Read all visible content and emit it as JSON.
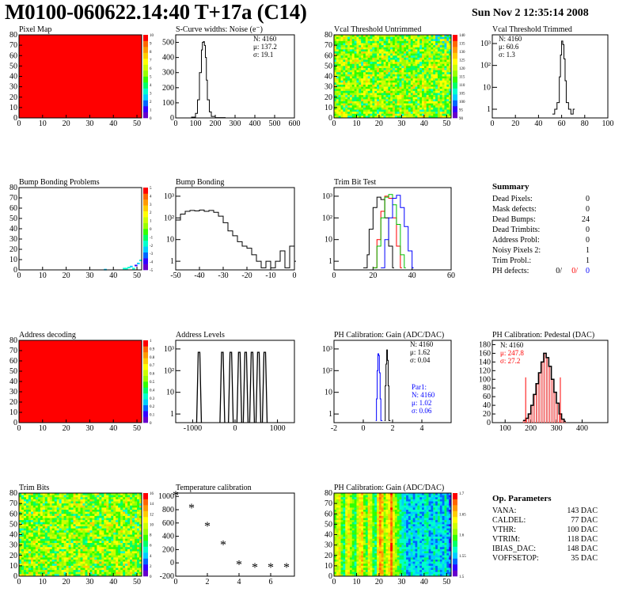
{
  "header": {
    "title": "M0100-060622.14:40 T+17a (C14)",
    "date": "Sun Nov  2 12:35:14 2008"
  },
  "colors": {
    "axis": "#000000",
    "red": "#ff0000",
    "green": "#00c000",
    "blue": "#0000ff",
    "palette": [
      "#6600cc",
      "#3300ff",
      "#0066ff",
      "#00ccff",
      "#00ffcc",
      "#00ff66",
      "#33ff00",
      "#99ff00",
      "#ccff00",
      "#ffff00",
      "#ffcc00",
      "#ff9900",
      "#ff6600",
      "#ff0000"
    ]
  },
  "summary": {
    "title": "Summary",
    "rows": [
      {
        "label": "Dead Pixels:",
        "value": "0"
      },
      {
        "label": "Mask defects:",
        "value": "0"
      },
      {
        "label": "Dead Bumps:",
        "value": "24"
      },
      {
        "label": "Dead Trimbits:",
        "value": "0"
      },
      {
        "label": "Address Probl:",
        "value": "0"
      },
      {
        "label": "Noisy Pixels 2:",
        "value": "1"
      },
      {
        "label": "Trim Probl.:",
        "value": "1"
      }
    ],
    "ph_label": "PH defects:",
    "ph_values": [
      "0/",
      "0/",
      "0"
    ]
  },
  "op_params": {
    "title": "Op. Parameters",
    "rows": [
      {
        "label": "VANA:",
        "value": "143 DAC"
      },
      {
        "label": "CALDEL:",
        "value": "77 DAC"
      },
      {
        "label": "VTHR:",
        "value": "100 DAC"
      },
      {
        "label": "VTRIM:",
        "value": "118 DAC"
      },
      {
        "label": "IBIAS_DAC:",
        "value": "148 DAC"
      },
      {
        "label": "VOFFSETOP:",
        "value": "35 DAC"
      }
    ]
  },
  "chart_data": [
    {
      "id": "pixel-map",
      "type": "heatmap",
      "title": "Pixel Map",
      "xlim": [
        0,
        52
      ],
      "ylim": [
        0,
        80
      ],
      "xticks": [
        "0",
        "10",
        "20",
        "30",
        "40",
        "50"
      ],
      "yticks": [
        "0",
        "10",
        "20",
        "30",
        "40",
        "50",
        "60",
        "70",
        "80"
      ],
      "fill": "uniform",
      "uniform_value": 10,
      "zlim": [
        0,
        10
      ],
      "zticks": [
        "10",
        "9",
        "8",
        "7",
        "6",
        "5",
        "4",
        "3",
        "2",
        "1",
        "0"
      ]
    },
    {
      "id": "scurve",
      "type": "line",
      "title": "S-Curve widths: Noise (e⁻)",
      "xlim": [
        0,
        600
      ],
      "xticks": [
        "0",
        "100",
        "200",
        "300",
        "400",
        "500",
        "600"
      ],
      "ylim": [
        0,
        550
      ],
      "yticks": [
        "0",
        "100",
        "200",
        "300",
        "400",
        "500"
      ],
      "stats": [
        "N: 4160",
        "μ: 137.2",
        "σ: 19.1"
      ],
      "x": [
        60,
        80,
        100,
        110,
        120,
        130,
        135,
        140,
        145,
        150,
        155,
        160,
        170,
        180,
        200,
        250
      ],
      "values": [
        0,
        5,
        30,
        120,
        300,
        450,
        500,
        505,
        480,
        400,
        250,
        120,
        40,
        10,
        2,
        0
      ]
    },
    {
      "id": "vcal-untrimmed",
      "type": "heatmap",
      "title": "Vcal Threshold Untrimmed",
      "xlim": [
        0,
        52
      ],
      "ylim": [
        0,
        80
      ],
      "xticks": [
        "0",
        "10",
        "20",
        "30",
        "40",
        "50"
      ],
      "yticks": [
        "0",
        "10",
        "20",
        "30",
        "40",
        "50",
        "60",
        "70",
        "80"
      ],
      "fill": "noise-mid",
      "zticks": [
        "140",
        "135",
        "130",
        "125",
        "120",
        "115",
        "110",
        "105",
        "100",
        "95",
        "90"
      ]
    },
    {
      "id": "vcal-trimmed",
      "type": "line",
      "title": "Vcal Threshold Trimmed",
      "log": true,
      "xlim": [
        0,
        100
      ],
      "xticks": [
        "0",
        "20",
        "40",
        "60",
        "80",
        "100"
      ],
      "yticks": [
        "1",
        "10",
        "10²",
        "10³"
      ],
      "stats": [
        "N: 4160",
        "μ: 60.6",
        "σ:  1.3"
      ],
      "x": [
        52,
        54,
        56,
        58,
        59,
        60,
        61,
        62,
        63,
        64,
        66,
        68,
        70
      ],
      "values": [
        0.6,
        1,
        2,
        30,
        300,
        1300,
        900,
        200,
        20,
        2,
        1,
        0.6,
        1
      ]
    },
    {
      "id": "bump-problems",
      "type": "heatmap",
      "title": "Bump Bonding Problems",
      "xlim": [
        0,
        52
      ],
      "ylim": [
        0,
        80
      ],
      "xticks": [
        "0",
        "10",
        "20",
        "30",
        "40",
        "50"
      ],
      "yticks": [
        "0",
        "10",
        "20",
        "30",
        "40",
        "50",
        "60",
        "70",
        "80"
      ],
      "fill": "sparse",
      "zticks": [
        "5",
        "4",
        "3",
        "2",
        "1",
        "0",
        "-1",
        "-2",
        "-3",
        "-4",
        "-5"
      ]
    },
    {
      "id": "bump-bonding",
      "type": "line",
      "title": "Bump Bonding",
      "log": true,
      "xlim": [
        -50,
        0
      ],
      "xticks": [
        "-50",
        "-40",
        "-30",
        "-20",
        "-10",
        "0"
      ],
      "yticks": [
        "1",
        "10",
        "10²",
        "10³"
      ],
      "x": [
        -50,
        -48,
        -46,
        -44,
        -42,
        -40,
        -38,
        -36,
        -34,
        -32,
        -30,
        -28,
        -26,
        -24,
        -22,
        -20,
        -18,
        -16,
        -14,
        -12,
        -10,
        -8,
        -6,
        -4,
        -2,
        0
      ],
      "values": [
        80,
        150,
        200,
        220,
        210,
        230,
        200,
        220,
        180,
        120,
        60,
        25,
        15,
        8,
        5,
        4,
        2,
        1,
        0.5,
        1,
        0.5,
        1,
        3,
        0.5,
        5,
        1
      ]
    },
    {
      "id": "trim-bit-test",
      "type": "line",
      "title": "Trim Bit Test",
      "log": true,
      "xlim": [
        0,
        60
      ],
      "xticks": [
        "0",
        "20",
        "40",
        "60"
      ],
      "yticks": [
        "1",
        "10",
        "10²",
        "10³"
      ],
      "series": [
        {
          "color": "#000000",
          "x": [
            15,
            17,
            18,
            20,
            22,
            24,
            26,
            28,
            30
          ],
          "values": [
            0.5,
            2,
            30,
            300,
            900,
            700,
            100,
            5,
            0.5
          ]
        },
        {
          "color": "#ff0000",
          "x": [
            20,
            22,
            24,
            26,
            28,
            30,
            32,
            34
          ],
          "values": [
            0.5,
            10,
            200,
            1000,
            800,
            100,
            5,
            0.5
          ]
        },
        {
          "color": "#00c000",
          "x": [
            20,
            22,
            24,
            26,
            28,
            30,
            32,
            34,
            36
          ],
          "values": [
            0.5,
            5,
            100,
            900,
            1200,
            400,
            50,
            2,
            0.5
          ]
        },
        {
          "color": "#0000ff",
          "x": [
            24,
            26,
            28,
            30,
            32,
            34,
            36,
            38,
            40
          ],
          "values": [
            0.5,
            10,
            100,
            800,
            1100,
            300,
            40,
            3,
            0.5
          ]
        }
      ]
    },
    {
      "id": "address-decoding",
      "type": "heatmap",
      "title": "Address decoding",
      "xlim": [
        0,
        52
      ],
      "ylim": [
        0,
        80
      ],
      "xticks": [
        "0",
        "10",
        "20",
        "30",
        "40",
        "50"
      ],
      "yticks": [
        "0",
        "10",
        "20",
        "30",
        "40",
        "50",
        "60",
        "70",
        "80"
      ],
      "fill": "uniform",
      "uniform_value": 1,
      "zlim": [
        0,
        1
      ],
      "zticks": [
        "1",
        "0.9",
        "0.8",
        "0.7",
        "0.6",
        "0.5",
        "0.4",
        "0.3",
        "0.2",
        "0.1",
        "0"
      ]
    },
    {
      "id": "address-levels",
      "type": "line",
      "title": "Address Levels",
      "log": true,
      "xlim": [
        -1400,
        1400
      ],
      "xticks": [
        "-1000",
        "0",
        "1000"
      ],
      "yticks": [
        "1",
        "10",
        "10²",
        "10³"
      ],
      "peaks": [
        -850,
        -300,
        -100,
        100,
        250,
        400,
        550,
        700
      ],
      "peak_values": [
        700,
        700,
        700,
        700,
        700,
        700,
        700,
        700
      ]
    },
    {
      "id": "ph-gain",
      "type": "line",
      "title": "PH Calibration: Gain (ADC/DAC)",
      "log": true,
      "xlim": [
        -2,
        6
      ],
      "xticks": [
        "-2",
        "0",
        "2",
        "4"
      ],
      "yticks": [
        "1",
        "10",
        "10²",
        "10³"
      ],
      "stats": [
        "N: 4160",
        "μ: 1.62",
        "σ: 0.04"
      ],
      "stats2": [
        "Par1:",
        "N: 4160",
        "μ: 1.02",
        "σ: 0.06"
      ],
      "series": [
        {
          "color": "#000000",
          "x": [
            1.45,
            1.5,
            1.55,
            1.6,
            1.65,
            1.7,
            1.75
          ],
          "values": [
            0.5,
            20,
            200,
            900,
            300,
            20,
            0.5
          ]
        },
        {
          "color": "#0000ff",
          "x": [
            0.85,
            0.9,
            0.95,
            1.0,
            1.05,
            1.1,
            1.15,
            1.2
          ],
          "values": [
            0.5,
            5,
            100,
            600,
            500,
            80,
            5,
            0.5
          ]
        }
      ]
    },
    {
      "id": "ph-pedestal",
      "type": "bar",
      "title": "PH Calibration: Pedestal (DAC)",
      "xlim": [
        50,
        500
      ],
      "xticks": [
        "100",
        "200",
        "300",
        "400"
      ],
      "ylim": [
        0,
        190
      ],
      "yticks": [
        "0",
        "20",
        "40",
        "60",
        "80",
        "100",
        "120",
        "140",
        "160",
        "180"
      ],
      "stats": [
        "N: 4160",
        "μ: 247.8",
        "σ: 27.2"
      ],
      "x": [
        170,
        180,
        190,
        200,
        210,
        220,
        230,
        240,
        250,
        260,
        270,
        280,
        290,
        300,
        310,
        320,
        330
      ],
      "values": [
        5,
        10,
        20,
        40,
        65,
        90,
        115,
        140,
        160,
        150,
        130,
        100,
        70,
        45,
        20,
        8,
        3
      ],
      "fit_marks": [
        180,
        315
      ]
    },
    {
      "id": "trim-bits",
      "type": "heatmap",
      "title": "Trim Bits",
      "xlim": [
        0,
        52
      ],
      "ylim": [
        0,
        80
      ],
      "xticks": [
        "0",
        "10",
        "20",
        "30",
        "40",
        "50"
      ],
      "yticks": [
        "0",
        "10",
        "20",
        "30",
        "40",
        "50",
        "60",
        "70",
        "80"
      ],
      "fill": "noise-mid",
      "zticks": [
        "16",
        "14",
        "12",
        "10",
        "8",
        "6",
        "4",
        "2",
        "0"
      ]
    },
    {
      "id": "temperature",
      "type": "scatter",
      "title": "Temperature calibration",
      "xlim": [
        0,
        7.5
      ],
      "xticks": [
        "0",
        "2",
        "4",
        "6"
      ],
      "ylim": [
        -200,
        1050
      ],
      "yticks": [
        "-200",
        "0",
        "200",
        "400",
        "600",
        "800",
        "1000"
      ],
      "x": [
        0,
        1,
        2,
        3,
        4,
        5,
        6,
        7
      ],
      "values": [
        1000,
        810,
        540,
        260,
        -40,
        -80,
        -80,
        -80
      ]
    },
    {
      "id": "ph-gain-map",
      "type": "heatmap",
      "title": "PH Calibration: Gain (ADC/DAC)",
      "xlim": [
        0,
        52
      ],
      "ylim": [
        0,
        80
      ],
      "xticks": [
        "0",
        "10",
        "20",
        "30",
        "40",
        "50"
      ],
      "yticks": [
        "0",
        "10",
        "20",
        "30",
        "40",
        "50",
        "60",
        "70",
        "80"
      ],
      "fill": "columns",
      "zticks": [
        "1.7",
        "1.65",
        "1.6",
        "1.55",
        "1.5"
      ]
    }
  ]
}
